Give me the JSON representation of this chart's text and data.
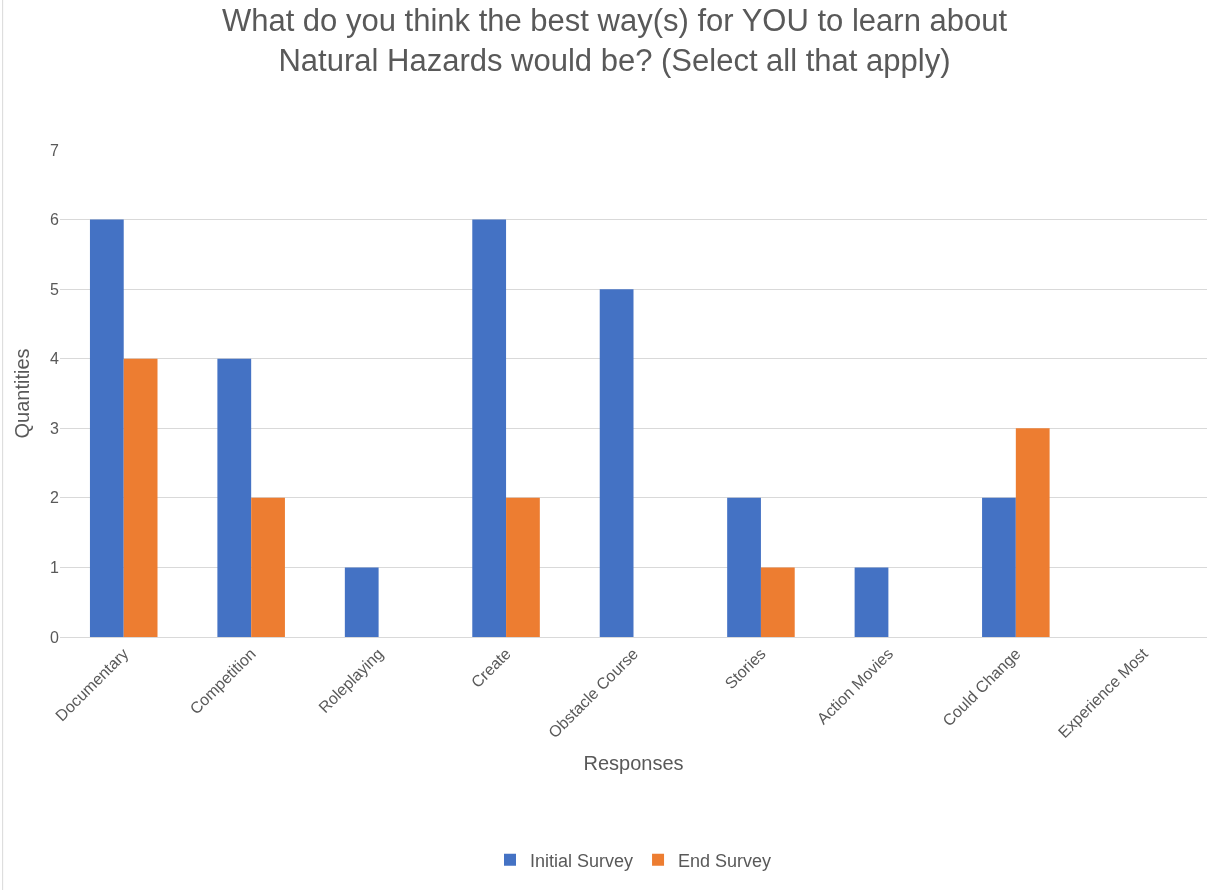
{
  "chart_data": {
    "type": "bar",
    "title": "What do you think the best way(s) for YOU to learn about Natural Hazards would be? (Select all that apply)",
    "xlabel": "Responses",
    "ylabel": "Quantities",
    "categories": [
      "Documentary",
      "Competition",
      "Roleplaying",
      "Create",
      "Obstacle Course",
      "Stories",
      "Action Movies",
      "Could Change",
      "Experience Most"
    ],
    "series": [
      {
        "name": "Initial Survey",
        "color": "#4472c4",
        "values": [
          6,
          4,
          1,
          6,
          5,
          2,
          1,
          2,
          0
        ]
      },
      {
        "name": "End Survey",
        "color": "#ed7d31",
        "values": [
          4,
          2,
          0,
          2,
          0,
          1,
          0,
          3,
          0
        ]
      }
    ],
    "ylim": [
      0,
      7
    ],
    "yticks": [
      0,
      1,
      2,
      3,
      4,
      5,
      6,
      7
    ],
    "grid": "y",
    "legend": "bottom"
  }
}
